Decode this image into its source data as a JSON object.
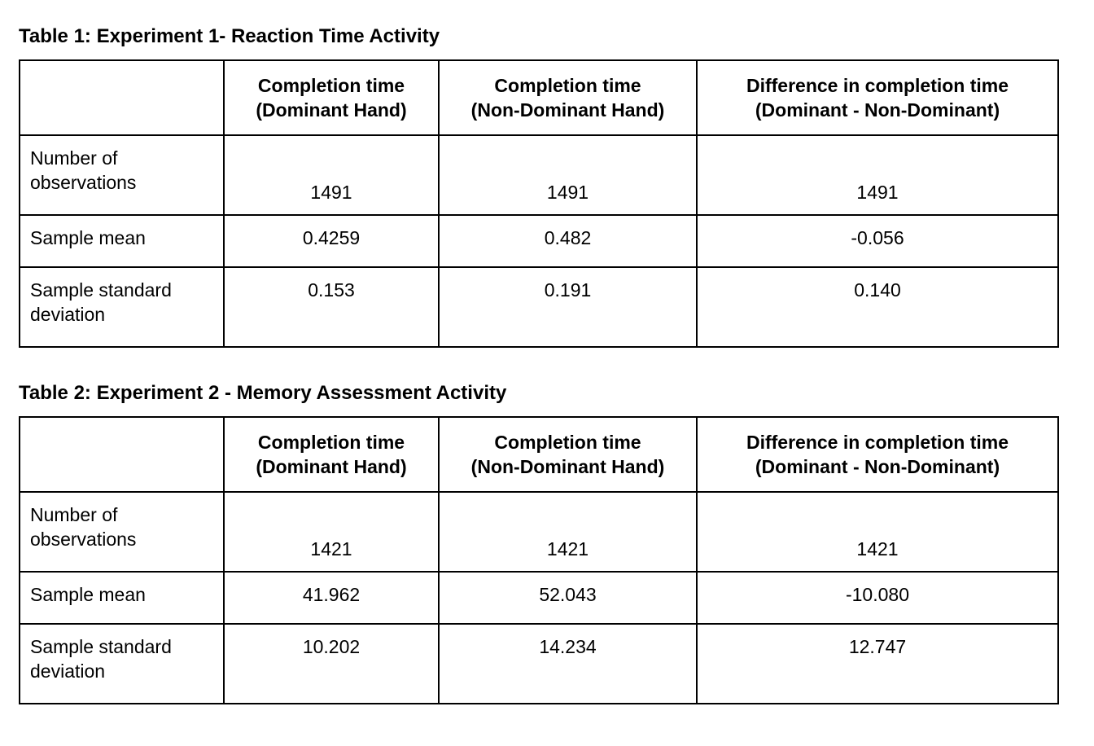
{
  "document": {
    "background_color": "#ffffff",
    "text_color": "#000000",
    "table_border_color": "#000000"
  },
  "table1": {
    "title": "Table 1: Experiment 1- Reaction Time Activity",
    "headers": [
      {
        "line1": "Completion time",
        "line2": "(Dominant Hand)"
      },
      {
        "line1": "Completion time",
        "line2": "(Non-Dominant Hand)"
      },
      {
        "line1": "Difference in completion time",
        "line2": "(Dominant - Non-Dominant)"
      }
    ],
    "rows": [
      {
        "label": "Number of observations",
        "values": [
          "1491",
          "1491",
          "1491"
        ]
      },
      {
        "label": "Sample mean",
        "values": [
          "0.4259",
          "0.482",
          "-0.056"
        ]
      },
      {
        "label": "Sample standard deviation",
        "values": [
          "0.153",
          "0.191",
          "0.140"
        ]
      }
    ]
  },
  "table2": {
    "title": "Table 2: Experiment 2 - Memory Assessment Activity",
    "headers": [
      {
        "line1": "Completion time",
        "line2": "(Dominant Hand)"
      },
      {
        "line1": "Completion time",
        "line2": "(Non-Dominant Hand)"
      },
      {
        "line1": "Difference in completion time",
        "line2": "(Dominant - Non-Dominant)"
      }
    ],
    "rows": [
      {
        "label": "Number of observations",
        "values": [
          "1421",
          "1421",
          "1421"
        ]
      },
      {
        "label": "Sample mean",
        "values": [
          "41.962",
          "52.043",
          "-10.080"
        ]
      },
      {
        "label": "Sample standard deviation",
        "values": [
          "10.202",
          "14.234",
          "12.747"
        ]
      }
    ]
  }
}
